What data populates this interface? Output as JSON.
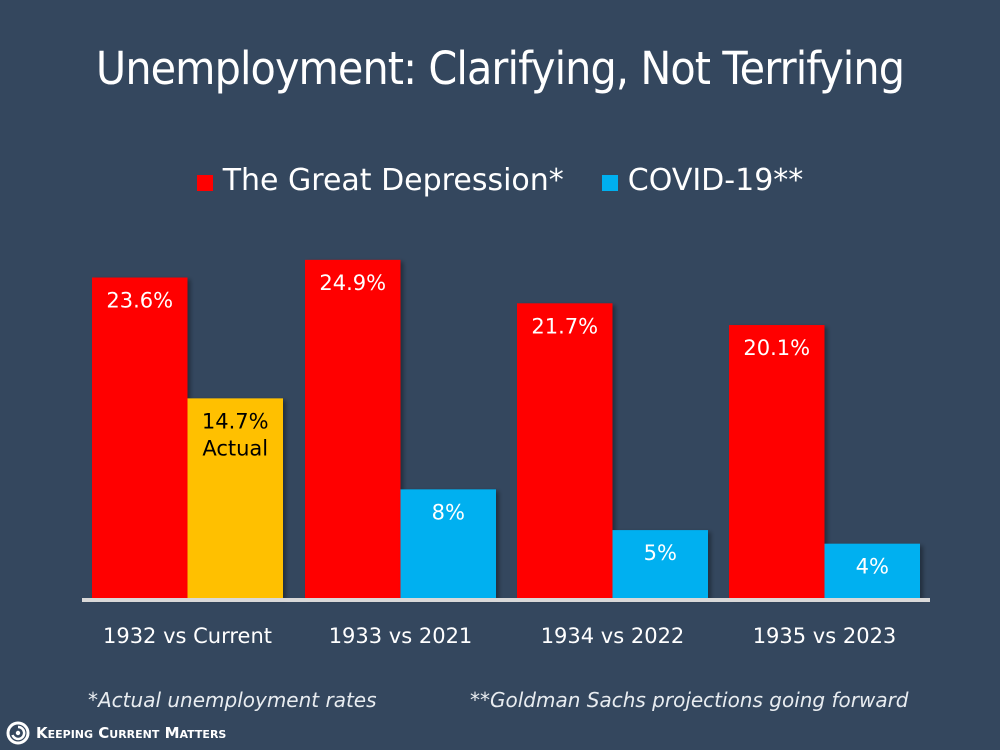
{
  "title": "Unemployment: Clarifying, Not Terrifying",
  "legend": [
    {
      "label": "The Great Depression*",
      "color": "#ff0000"
    },
    {
      "label": "COVID-19**",
      "color": "#00b0f0"
    }
  ],
  "footnotes": {
    "left": "*Actual unemployment rates",
    "right": "**Goldman Sachs projections going forward"
  },
  "brand": {
    "name": "Keeping Current Matters",
    "icon": "spiral-logo-icon"
  },
  "chart_data": {
    "type": "bar",
    "title": "Unemployment: Clarifying, Not Terrifying",
    "xlabel": "",
    "ylabel": "",
    "ylim": [
      0,
      30
    ],
    "grid": false,
    "legend_position": "top-center",
    "categories": [
      "1932 vs Current",
      "1933 vs 2021",
      "1934 vs 2022",
      "1935 vs 2023"
    ],
    "series": [
      {
        "name": "The Great Depression*",
        "color": "#ff0000",
        "values": [
          23.6,
          24.9,
          21.7,
          20.1
        ],
        "labels": [
          "23.6%",
          "24.9%",
          "21.7%",
          "20.1%"
        ],
        "label_color": "#ffffff"
      },
      {
        "name": "COVID-19**",
        "color": "#00b0f0",
        "values": [
          14.7,
          8,
          5,
          4
        ],
        "labels": [
          "14.7%\nActual",
          "8%",
          "5%",
          "4%"
        ],
        "label_color": "#ffffff",
        "point_overrides": [
          {
            "index": 0,
            "color": "#ffc000",
            "label_color": "#000000",
            "note": "Actual"
          }
        ]
      }
    ]
  }
}
